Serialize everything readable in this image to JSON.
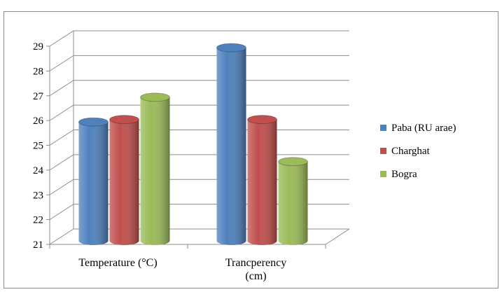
{
  "chart_data": {
    "type": "bar",
    "title": "",
    "xlabel": "",
    "ylabel": "",
    "ylim": [
      21,
      29
    ],
    "yticks": [
      21,
      22,
      23,
      24,
      25,
      26,
      27,
      28,
      29
    ],
    "categories": [
      "Temperature (°C)",
      "Trancperency (cm)"
    ],
    "category_label_lines": [
      [
        "Temperature (°C)"
      ],
      [
        "Trancperency",
        "(cm)"
      ]
    ],
    "series": [
      {
        "name": "Paba (RU arae)",
        "color": "#4f81bd",
        "values": [
          25.8,
          28.8
        ]
      },
      {
        "name": "Charghat",
        "color": "#c0504d",
        "values": [
          25.9,
          25.9
        ]
      },
      {
        "name": "Bogra",
        "color": "#9bbb59",
        "values": [
          26.8,
          24.2
        ]
      }
    ],
    "grid": true,
    "style": "3d-cylinder",
    "legend_position": "right"
  }
}
